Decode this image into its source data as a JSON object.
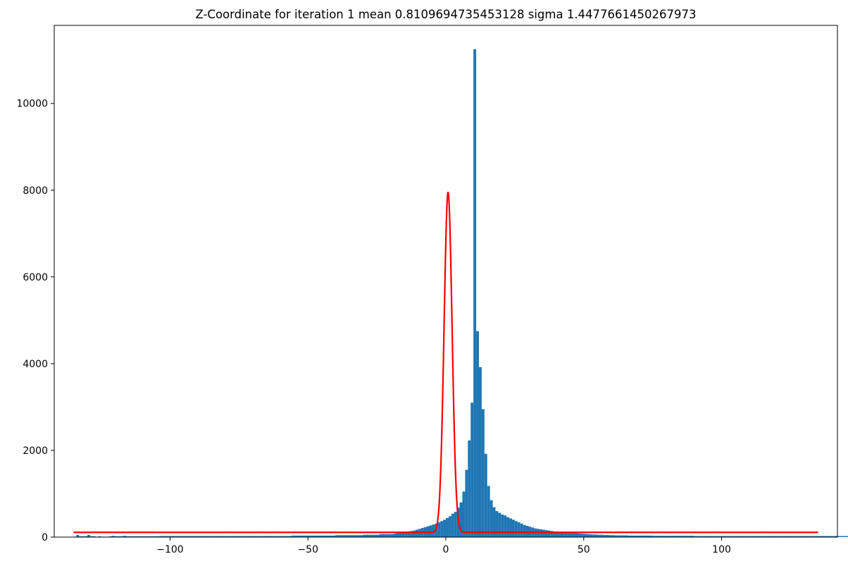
{
  "chart_data": {
    "type": "histogram",
    "title": "Z-Coordinate for iteration 1 mean 0.8109694735453128 sigma 1.4477661450267973",
    "xlabel": "",
    "ylabel": "",
    "xlim": [
      -142,
      142
    ],
    "ylim": [
      0,
      11800
    ],
    "xticks": [
      -100,
      -50,
      0,
      50,
      100
    ],
    "xtick_labels": [
      "−100",
      "−50",
      "0",
      "50",
      "100"
    ],
    "yticks": [
      0,
      2000,
      4000,
      6000,
      8000,
      10000
    ],
    "ytick_labels": [
      "0",
      "2000",
      "4000",
      "6000",
      "8000",
      "10000"
    ],
    "grid": false,
    "legend": "none",
    "colors": {
      "bars": "#1f77b4",
      "fit": "#ff0000"
    },
    "histogram": {
      "bin_start": -135,
      "bin_width": 1,
      "values": [
        10,
        50,
        20,
        20,
        20,
        50,
        20,
        20,
        10,
        20,
        10,
        10,
        10,
        20,
        30,
        20,
        20,
        20,
        30,
        20,
        20,
        20,
        20,
        20,
        20,
        20,
        20,
        20,
        20,
        20,
        20,
        25,
        25,
        25,
        25,
        25,
        25,
        25,
        25,
        25,
        25,
        25,
        25,
        25,
        25,
        25,
        25,
        25,
        25,
        25,
        25,
        25,
        25,
        25,
        25,
        25,
        25,
        25,
        25,
        25,
        25,
        25,
        25,
        25,
        25,
        25,
        25,
        25,
        25,
        25,
        25,
        25,
        25,
        25,
        25,
        25,
        25,
        25,
        25,
        35,
        35,
        35,
        35,
        35,
        35,
        35,
        35,
        35,
        35,
        35,
        35,
        35,
        35,
        35,
        35,
        45,
        45,
        45,
        45,
        45,
        45,
        45,
        45,
        45,
        45,
        55,
        55,
        55,
        55,
        55,
        55,
        70,
        70,
        70,
        70,
        70,
        80,
        90,
        100,
        110,
        120,
        130,
        140,
        150,
        170,
        190,
        210,
        230,
        250,
        270,
        290,
        310,
        340,
        370,
        400,
        440,
        480,
        540,
        580,
        680,
        800,
        1050,
        1550,
        2230,
        3100,
        11250,
        4750,
        3920,
        2950,
        1920,
        1180,
        850,
        690,
        600,
        560,
        520,
        500,
        460,
        430,
        400,
        370,
        340,
        310,
        280,
        260,
        240,
        220,
        200,
        190,
        180,
        170,
        160,
        150,
        140,
        130,
        125,
        120,
        115,
        110,
        105,
        100,
        95,
        90,
        85,
        80,
        75,
        70,
        65,
        60,
        60,
        55,
        55,
        50,
        50,
        45,
        45,
        40,
        40,
        40,
        40,
        40,
        35,
        35,
        35,
        35,
        35,
        35,
        35,
        35,
        35,
        30,
        30,
        30,
        30,
        30,
        30,
        30,
        30,
        30,
        30,
        30,
        30,
        30,
        30,
        30,
        25,
        25,
        25,
        25,
        25,
        25,
        25,
        25,
        25,
        25,
        25,
        25,
        25,
        25,
        25,
        25,
        25,
        25,
        25,
        25,
        25,
        25,
        25,
        25,
        25,
        25,
        25,
        25,
        25,
        25,
        25,
        25,
        25,
        25,
        25,
        25,
        25,
        25,
        25,
        25,
        25,
        25,
        25,
        25,
        25,
        25,
        25,
        25,
        25,
        25,
        25,
        25,
        25,
        25,
        25,
        25,
        25,
        25,
        25,
        25,
        25,
        25,
        25,
        25
      ]
    },
    "fit_line": {
      "mean": 0.8109694735453128,
      "sigma": 1.4477661450267973,
      "amplitude": 7850,
      "offset": 110,
      "x_range": [
        -135,
        135
      ]
    }
  }
}
